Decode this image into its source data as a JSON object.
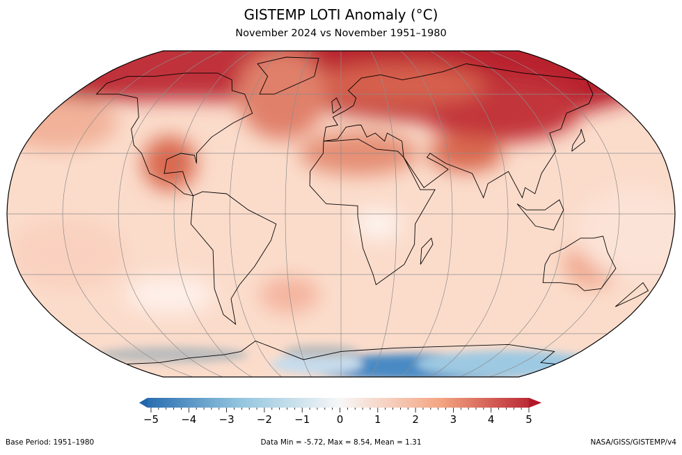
{
  "title": "GISTEMP LOTI Anomaly (°C)",
  "subtitle": "November 2024 vs November 1951–1980",
  "colorbar": {
    "ticks": [
      "−5",
      "−4",
      "−3",
      "−2",
      "−1",
      "0",
      "1",
      "2",
      "3",
      "4",
      "5"
    ],
    "min": -5,
    "max": 5,
    "colors": [
      "#2166ac",
      "#92c5de",
      "#f7f7f7",
      "#f4a582",
      "#b2182b"
    ],
    "extend": "both"
  },
  "footer": {
    "base_period": "Base Period: 1951–1980",
    "stats": "Data Min = -5.72, Max = 8.54, Mean = 1.31",
    "source": "NASA/GISS/GISTEMP/v4"
  },
  "map": {
    "projection": "Robinson",
    "graticule_lon_step": 30,
    "graticule_lat_step": 30,
    "missing_color": "#bdbdbd"
  }
}
